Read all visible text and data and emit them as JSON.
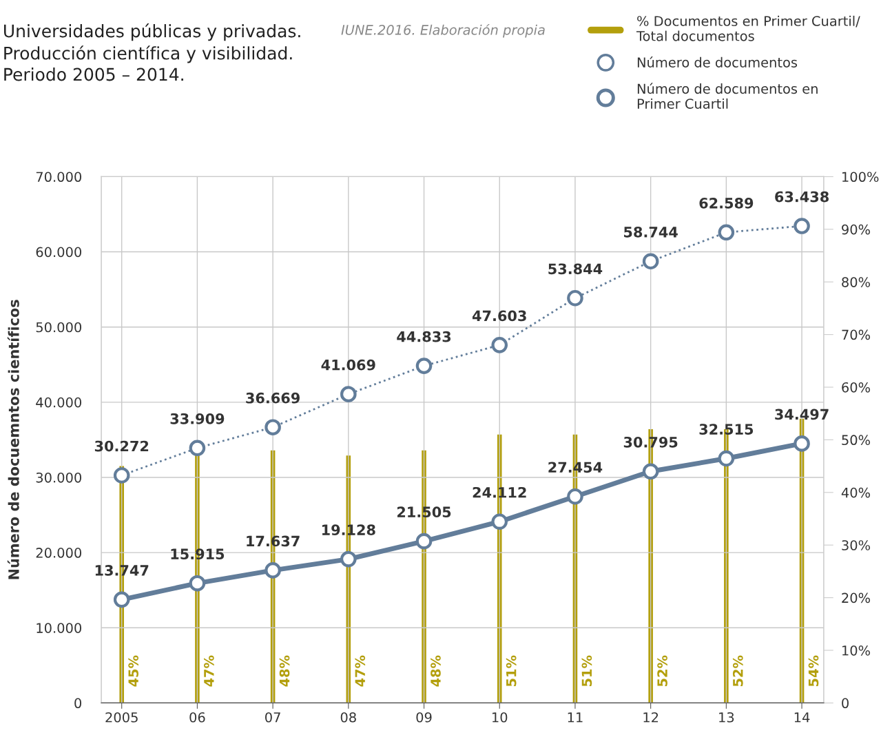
{
  "chart_data": {
    "type": "line",
    "title": "Universidades públicas y privadas.\nProducción científica y visibilidad.\nPeriodo 2005 – 2014.",
    "annotations": [
      "IUNE.2016. Elaboración propia"
    ],
    "ylabel": "Número de docuemntos científicos",
    "categories": [
      "2005",
      "06",
      "07",
      "08",
      "09",
      "10",
      "11",
      "12",
      "13",
      "14"
    ],
    "series": [
      {
        "name": "% Documentos en Primer Cuartil/\nTotal documentos",
        "type": "bar",
        "axis": "y2",
        "color": "#b39f0c",
        "values": [
          45,
          47,
          48,
          47,
          48,
          51,
          51,
          52,
          52,
          54
        ],
        "value_labels": [
          "45%",
          "47%",
          "48%",
          "47%",
          "48%",
          "51%",
          "51%",
          "52%",
          "52%",
          "54%"
        ]
      },
      {
        "name": "Número de documentos",
        "color": "#627d9a",
        "line_style": "dotted",
        "marker": "circle",
        "values": [
          30272,
          33909,
          36669,
          41069,
          44833,
          47603,
          53844,
          58744,
          62589,
          63438
        ],
        "value_labels": [
          "30.272",
          "33.909",
          "36.669",
          "41.069",
          "44.833",
          "47.603",
          "53.844",
          "58.744",
          "62.589",
          "63.438"
        ]
      },
      {
        "name": "Número de documentos en\nPrimer Cuartil",
        "color": "#627d9a",
        "line_style": "solid",
        "marker": "circle",
        "values": [
          13747,
          15915,
          17637,
          19128,
          21505,
          24112,
          27454,
          30795,
          32515,
          34497
        ],
        "value_labels": [
          "13.747",
          "15.915",
          "17.637",
          "19.128",
          "21.505",
          "24.112",
          "27.454",
          "30.795",
          "32.515",
          "34.497"
        ]
      }
    ],
    "ylim": [
      0,
      70000
    ],
    "yticks": [
      {
        "value": 0,
        "label": "0"
      },
      {
        "value": 10000,
        "label": "10.000"
      },
      {
        "value": 20000,
        "label": "20.000"
      },
      {
        "value": 30000,
        "label": "30.000"
      },
      {
        "value": 40000,
        "label": "40.000"
      },
      {
        "value": 50000,
        "label": "50.000"
      },
      {
        "value": 60000,
        "label": "60.000"
      },
      {
        "value": 70000,
        "label": "70.000"
      }
    ],
    "y2lim": [
      0,
      100
    ],
    "y2ticks": [
      {
        "value": 0,
        "label": "0"
      },
      {
        "value": 10,
        "label": "10%"
      },
      {
        "value": 20,
        "label": "20%"
      },
      {
        "value": 30,
        "label": "30%"
      },
      {
        "value": 40,
        "label": "40%"
      },
      {
        "value": 50,
        "label": "50%"
      },
      {
        "value": 60,
        "label": "60%"
      },
      {
        "value": 70,
        "label": "70%"
      },
      {
        "value": 80,
        "label": "80%"
      },
      {
        "value": 90,
        "label": "90%"
      },
      {
        "value": 100,
        "label": "100%"
      }
    ],
    "grid": true,
    "legend": "top right"
  }
}
